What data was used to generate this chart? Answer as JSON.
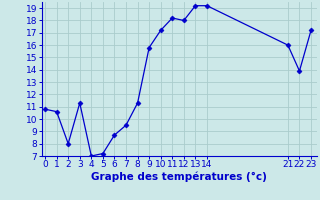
{
  "x": [
    0,
    1,
    2,
    3,
    4,
    5,
    6,
    7,
    8,
    9,
    10,
    11,
    12,
    13,
    14,
    21,
    22,
    23
  ],
  "y": [
    10.8,
    10.6,
    8.0,
    11.3,
    7.0,
    7.2,
    8.7,
    9.5,
    11.3,
    15.8,
    17.2,
    18.2,
    18.0,
    19.2,
    19.2,
    16.0,
    13.9,
    17.2
  ],
  "line_color": "#0000cc",
  "marker": "D",
  "marker_size": 2.5,
  "bg_color": "#cce8e8",
  "grid_color": "#aacccc",
  "xlabel": "Graphe des températures (°c)",
  "ylim": [
    7,
    19.5
  ],
  "yticks": [
    7,
    8,
    9,
    10,
    11,
    12,
    13,
    14,
    15,
    16,
    17,
    18,
    19
  ],
  "xticks": [
    0,
    1,
    2,
    3,
    4,
    5,
    6,
    7,
    8,
    9,
    10,
    11,
    12,
    13,
    14,
    21,
    22,
    23
  ],
  "xlim": [
    -0.3,
    23.5
  ],
  "axis_color": "#0000cc",
  "tick_label_fontsize": 6.5,
  "xlabel_fontsize": 7.5
}
